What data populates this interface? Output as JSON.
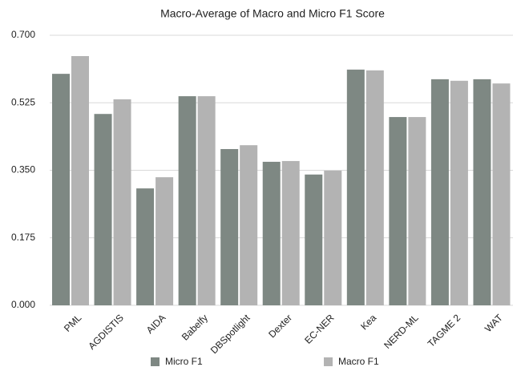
{
  "chart_data": {
    "type": "bar",
    "title": "Macro-Average of Macro and Micro F1 Score",
    "categories": [
      "PML",
      "AGDISTIS",
      "AIDA",
      "Babelfy",
      "DBSpotlight",
      "Dexter",
      "EC-NER",
      "Kea",
      "NERD-ML",
      "TAGME 2",
      "WAT"
    ],
    "series": [
      {
        "name": "Micro F1",
        "color": "#7e8883",
        "values": [
          0.6,
          0.496,
          0.303,
          0.542,
          0.405,
          0.372,
          0.339,
          0.611,
          0.488,
          0.586,
          0.586
        ]
      },
      {
        "name": "Macro F1",
        "color": "#b3b3b3",
        "values": [
          0.646,
          0.534,
          0.332,
          0.542,
          0.415,
          0.374,
          0.349,
          0.609,
          0.488,
          0.582,
          0.575
        ]
      }
    ],
    "ylim": [
      0,
      0.7
    ],
    "yticks": [
      {
        "value": 0,
        "label": "0.000"
      },
      {
        "value": 0.175,
        "label": "0.175"
      },
      {
        "value": 0.35,
        "label": "0.350"
      },
      {
        "value": 0.525,
        "label": "0.525"
      },
      {
        "value": 0.7,
        "label": "0.700"
      }
    ],
    "grid": true,
    "legend": "bottom"
  }
}
